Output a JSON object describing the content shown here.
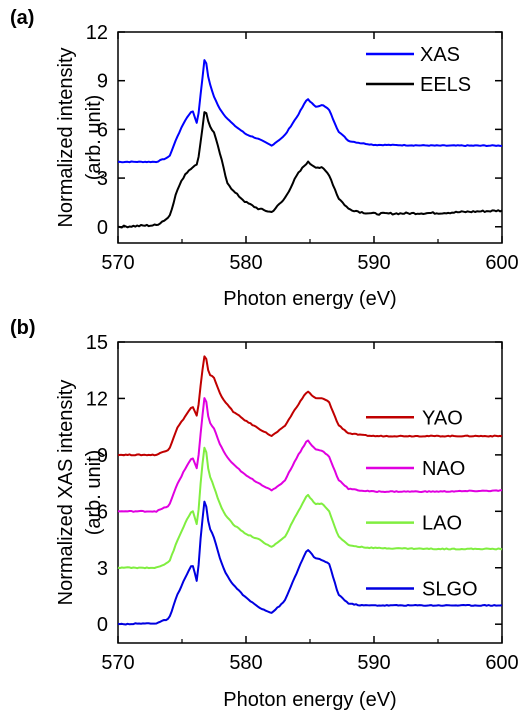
{
  "chart_data": [
    {
      "type": "line",
      "panel_label": "(a)",
      "xlabel": "Photon energy (eV)",
      "ylabel_line1": "Normalized intensity",
      "ylabel_line2": "(arb. unit)",
      "xlim": [
        570,
        600
      ],
      "ylim": [
        -1,
        12
      ],
      "xticks": [
        570,
        580,
        590,
        600
      ],
      "yticks": [
        0,
        3,
        6,
        9,
        12
      ],
      "legend_position": "top-right",
      "series": [
        {
          "name": "XAS",
          "color": "#0000ff",
          "x": [
            570,
            573,
            574,
            574.6,
            575.2,
            575.8,
            576.2,
            576.5,
            576.8,
            577.1,
            577.5,
            578,
            578.5,
            579,
            580,
            581,
            582,
            583,
            584,
            584.8,
            585.4,
            586,
            586.5,
            587.2,
            588,
            589,
            590,
            595,
            600
          ],
          "y": [
            4.0,
            4.0,
            4.3,
            5.5,
            6.5,
            7.2,
            6.3,
            8.5,
            10.6,
            9.0,
            8.0,
            7.2,
            6.7,
            6.3,
            5.7,
            5.4,
            5.0,
            5.6,
            6.8,
            7.9,
            7.4,
            7.5,
            7.2,
            5.9,
            5.3,
            5.15,
            5.05,
            5.0,
            5.0
          ]
        },
        {
          "name": "EELS",
          "color": "#000000",
          "x": [
            570,
            573,
            574,
            574.6,
            575.2,
            575.8,
            576.2,
            576.5,
            576.8,
            577.1,
            577.5,
            578,
            578.5,
            579,
            580,
            581,
            582,
            583,
            584,
            584.8,
            585.4,
            586,
            586.5,
            587.2,
            588,
            589,
            590,
            595,
            600
          ],
          "y": [
            0.0,
            0.1,
            0.6,
            2.2,
            3.2,
            3.7,
            3.8,
            5.5,
            7.4,
            6.3,
            5.8,
            4.4,
            2.8,
            2.2,
            1.5,
            1.1,
            0.9,
            1.7,
            3.2,
            4.0,
            3.7,
            3.6,
            3.2,
            1.8,
            1.1,
            0.9,
            0.8,
            0.85,
            1.0
          ]
        }
      ]
    },
    {
      "type": "line",
      "panel_label": "(b)",
      "xlabel": "Photon energy (eV)",
      "ylabel_line1": "Normalized XAS intensity",
      "ylabel_line2": "(arb. unit)",
      "xlim": [
        570,
        600
      ],
      "ylim": [
        -1,
        15
      ],
      "xticks": [
        570,
        580,
        590,
        600
      ],
      "yticks": [
        0,
        3,
        6,
        9,
        12,
        15
      ],
      "legend_position": "right",
      "series": [
        {
          "name": "YAO",
          "color": "#c00000",
          "x": [
            570,
            573,
            574,
            574.6,
            575.2,
            575.8,
            576.2,
            576.5,
            576.8,
            577.1,
            577.5,
            578,
            578.5,
            579,
            580,
            581,
            582,
            583,
            584,
            584.8,
            585.4,
            586,
            586.5,
            587.2,
            588,
            589,
            590,
            595,
            600
          ],
          "y": [
            9.0,
            9.0,
            9.3,
            10.4,
            11.0,
            11.6,
            11.0,
            13.0,
            14.5,
            13.3,
            13.1,
            12.2,
            11.7,
            11.3,
            10.8,
            10.4,
            10.0,
            10.5,
            11.6,
            12.4,
            12.0,
            12.0,
            11.8,
            10.6,
            10.15,
            10.05,
            10.0,
            10.0,
            10.0
          ]
        },
        {
          "name": "NAO",
          "color": "#e000e0",
          "x": [
            570,
            573,
            574,
            574.6,
            575.2,
            575.8,
            576.2,
            576.5,
            576.8,
            577.1,
            577.5,
            578,
            578.5,
            579,
            580,
            581,
            582,
            583,
            584,
            584.8,
            585.4,
            586,
            586.5,
            587.2,
            588,
            589,
            590,
            595,
            600
          ],
          "y": [
            6.0,
            6.0,
            6.3,
            7.4,
            8.2,
            8.9,
            8.2,
            10.5,
            12.3,
            10.8,
            10.4,
            9.5,
            8.9,
            8.5,
            7.9,
            7.5,
            7.1,
            7.6,
            8.9,
            9.8,
            9.3,
            9.2,
            8.9,
            7.7,
            7.2,
            7.1,
            7.05,
            7.05,
            7.1
          ]
        },
        {
          "name": "LAO",
          "color": "#80ee40",
          "x": [
            570,
            573,
            574,
            574.6,
            575.2,
            575.8,
            576.2,
            576.5,
            576.8,
            577.1,
            577.5,
            578,
            578.5,
            579,
            580,
            581,
            582,
            583,
            584,
            584.8,
            585.4,
            586,
            586.5,
            587.2,
            588,
            589,
            590,
            595,
            600
          ],
          "y": [
            3.0,
            3.0,
            3.3,
            4.4,
            5.3,
            6.1,
            5.2,
            7.9,
            9.7,
            8.0,
            7.3,
            6.3,
            5.7,
            5.3,
            4.8,
            4.5,
            4.1,
            4.6,
            5.9,
            6.9,
            6.4,
            6.4,
            6.0,
            4.7,
            4.2,
            4.1,
            4.05,
            4.0,
            4.0
          ]
        },
        {
          "name": "SLGO",
          "color": "#0000e0",
          "x": [
            570,
            573,
            574,
            574.6,
            575.2,
            575.8,
            576.2,
            576.5,
            576.8,
            577.1,
            577.5,
            578,
            578.5,
            579,
            580,
            581,
            582,
            583,
            584,
            584.8,
            585.4,
            586,
            586.5,
            587.2,
            588,
            589,
            590,
            595,
            600
          ],
          "y": [
            0.0,
            0.05,
            0.3,
            1.5,
            2.4,
            3.2,
            2.2,
            5.0,
            6.8,
            5.2,
            4.6,
            3.4,
            2.6,
            2.1,
            1.4,
            0.9,
            0.6,
            1.2,
            2.8,
            4.0,
            3.5,
            3.4,
            3.2,
            1.6,
            1.1,
            1.0,
            1.0,
            1.0,
            1.0
          ]
        }
      ]
    }
  ]
}
